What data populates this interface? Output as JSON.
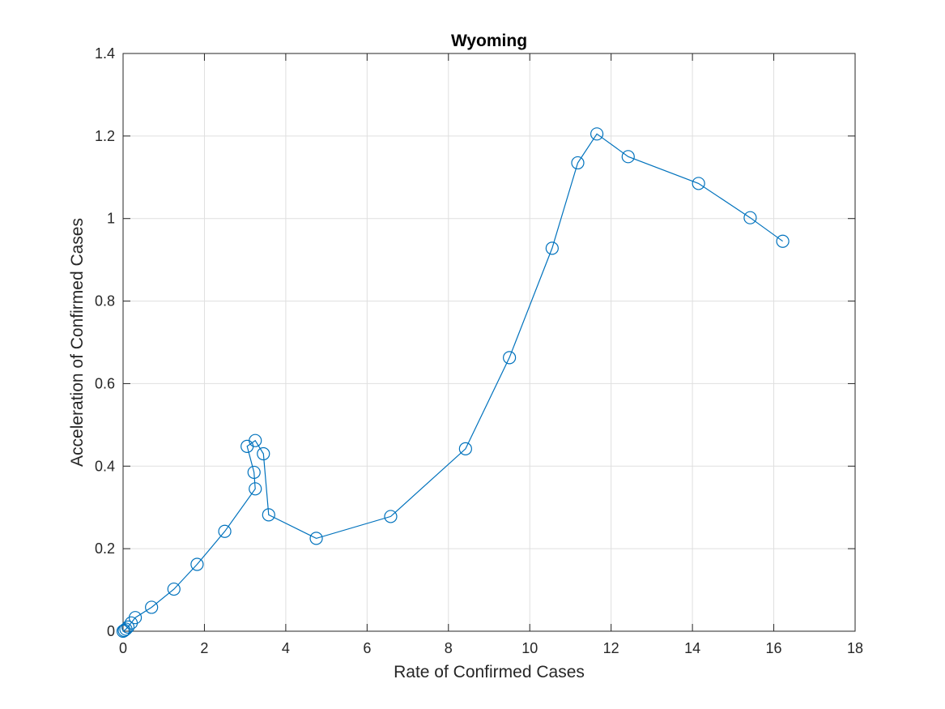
{
  "chart_data": {
    "type": "line",
    "title": "Wyoming",
    "xlabel": "Rate of Confirmed Cases",
    "ylabel": "Acceleration of Confirmed Cases",
    "xlim": [
      0,
      18
    ],
    "ylim": [
      0,
      1.4
    ],
    "xticks": [
      0,
      2,
      4,
      6,
      8,
      10,
      12,
      14,
      16,
      18
    ],
    "yticks": [
      0,
      0.2,
      0.4,
      0.6,
      0.8,
      1,
      1.2,
      1.4
    ],
    "xtick_labels": [
      "0",
      "2",
      "4",
      "6",
      "8",
      "10",
      "12",
      "14",
      "16",
      "18"
    ],
    "ytick_labels": [
      "0",
      "0.2",
      "0.4",
      "0.6",
      "0.8",
      "1",
      "1.2",
      "1.4"
    ],
    "grid": true,
    "marker": "circle-open",
    "series": [
      {
        "color": "#0072bd",
        "x": [
          0.0,
          0.03,
          0.07,
          0.12,
          0.2,
          0.3,
          0.7,
          1.25,
          1.82,
          2.5,
          3.25,
          3.22,
          3.05,
          3.25,
          3.45,
          3.58,
          4.75,
          6.58,
          8.42,
          9.5,
          10.55,
          11.18,
          11.65,
          12.42,
          14.15,
          15.42,
          16.22
        ],
        "y": [
          0.0,
          0.002,
          0.005,
          0.01,
          0.02,
          0.033,
          0.058,
          0.102,
          0.162,
          0.242,
          0.345,
          0.385,
          0.448,
          0.462,
          0.43,
          0.282,
          0.225,
          0.278,
          0.442,
          0.663,
          0.928,
          1.135,
          1.205,
          1.15,
          1.085,
          1.002,
          0.945
        ]
      }
    ]
  }
}
